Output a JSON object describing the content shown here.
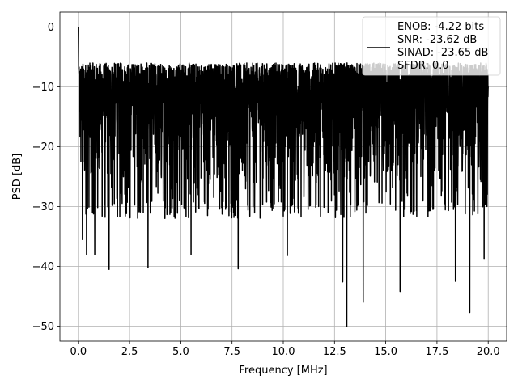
{
  "chart_data": {
    "type": "line",
    "title": "",
    "xlabel": "Frequency [MHz]",
    "ylabel": "PSD [dB]",
    "xlim": [
      -0.9,
      20.9
    ],
    "ylim": [
      -52.5,
      2.5
    ],
    "xticks": [
      0.0,
      2.5,
      5.0,
      7.5,
      10.0,
      12.5,
      15.0,
      17.5,
      20.0
    ],
    "xtick_labels": [
      "0.0",
      "2.5",
      "5.0",
      "7.5",
      "10.0",
      "12.5",
      "15.0",
      "17.5",
      "20.0"
    ],
    "yticks": [
      0,
      -10,
      -20,
      -30,
      -40,
      -50
    ],
    "ytick_labels": [
      "0",
      "−10",
      "−20",
      "−30",
      "−40",
      "−50"
    ],
    "grid": true,
    "legend_position": "top-right",
    "series_color": "#000000",
    "series": [
      {
        "name": "ENOB: -4.22 bits\nSNR: -23.62 dB\nSINAD: -23.65 dB\nSFDR: 0.0",
        "x_range": [
          0.0,
          20.0
        ],
        "peak": {
          "x": 0.0,
          "y": 0.0
        },
        "noise_floor_typical_range": [
          -28,
          -6
        ],
        "notable_dips": [
          {
            "x": 0.2,
            "y": -35.5
          },
          {
            "x": 0.4,
            "y": -38.0
          },
          {
            "x": 0.8,
            "y": -38.0
          },
          {
            "x": 1.5,
            "y": -40.5
          },
          {
            "x": 3.4,
            "y": -40.2
          },
          {
            "x": 5.5,
            "y": -38.0
          },
          {
            "x": 7.8,
            "y": -40.4
          },
          {
            "x": 10.2,
            "y": -38.2
          },
          {
            "x": 12.9,
            "y": -42.6
          },
          {
            "x": 13.1,
            "y": -50.1
          },
          {
            "x": 13.9,
            "y": -46.0
          },
          {
            "x": 15.7,
            "y": -44.2
          },
          {
            "x": 18.4,
            "y": -42.5
          },
          {
            "x": 19.1,
            "y": -47.7
          },
          {
            "x": 19.8,
            "y": -38.8
          }
        ]
      }
    ]
  }
}
